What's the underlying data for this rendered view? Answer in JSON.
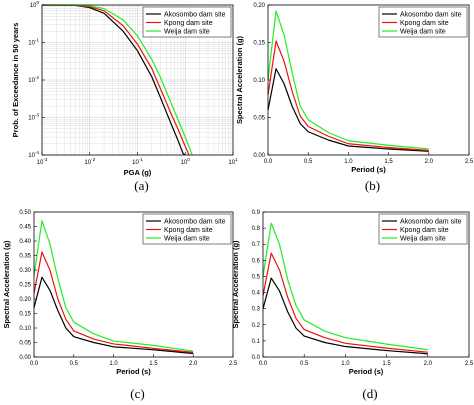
{
  "colors": {
    "akosombo": "#000000",
    "kpong": "#ee1111",
    "weija": "#22ee22",
    "grid": "#d0d0d0"
  },
  "chart_data": [
    {
      "type": "line",
      "caption": "(a)",
      "xlabel": "PGA (g)",
      "ylabel": "Prob. of Exceedance in 50 years",
      "xscale": "log",
      "yscale": "log",
      "xlim": [
        0.001,
        10
      ],
      "ylim": [
        0.0001,
        1
      ],
      "grid": true,
      "legend": "top-right",
      "xticks": [
        {
          "v": 0.001,
          "b": "10",
          "e": "-3"
        },
        {
          "v": 0.01,
          "b": "10",
          "e": "-2"
        },
        {
          "v": 0.1,
          "b": "10",
          "e": "-1"
        },
        {
          "v": 1,
          "b": "10",
          "e": "0"
        },
        {
          "v": 10,
          "b": "10",
          "e": "1"
        }
      ],
      "yticks": [
        {
          "v": 0.0001,
          "b": "10",
          "e": "-4"
        },
        {
          "v": 0.001,
          "b": "10",
          "e": "-3"
        },
        {
          "v": 0.01,
          "b": "10",
          "e": "-2"
        },
        {
          "v": 0.1,
          "b": "10",
          "e": "-1"
        },
        {
          "v": 1,
          "b": "10",
          "e": "0"
        }
      ],
      "series": [
        {
          "name": "Akosombo dam site",
          "color_key": "akosombo",
          "x": [
            0.001,
            0.005,
            0.01,
            0.02,
            0.05,
            0.1,
            0.2,
            0.3,
            0.5,
            0.7,
            0.9,
            1.0
          ],
          "y": [
            1.0,
            0.98,
            0.85,
            0.6,
            0.2,
            0.06,
            0.012,
            0.0035,
            0.0007,
            0.00025,
            0.00011,
            0.0001
          ]
        },
        {
          "name": "Kpong dam site",
          "color_key": "kpong",
          "x": [
            0.001,
            0.005,
            0.01,
            0.02,
            0.05,
            0.1,
            0.2,
            0.3,
            0.5,
            0.7,
            1.0,
            1.2
          ],
          "y": [
            1.0,
            0.99,
            0.9,
            0.7,
            0.28,
            0.09,
            0.02,
            0.006,
            0.0013,
            0.0005,
            0.00017,
            0.0001
          ]
        },
        {
          "name": "Weija dam site",
          "color_key": "weija",
          "x": [
            0.001,
            0.005,
            0.01,
            0.02,
            0.05,
            0.1,
            0.2,
            0.3,
            0.5,
            0.7,
            1.0,
            1.4
          ],
          "y": [
            1.0,
            0.99,
            0.95,
            0.8,
            0.4,
            0.15,
            0.035,
            0.012,
            0.0025,
            0.0009,
            0.0003,
            0.0001
          ]
        }
      ]
    },
    {
      "type": "line",
      "caption": "(b)",
      "xlabel": "Period (s)",
      "ylabel": "Spectral Acceleration (g)",
      "xlim": [
        0,
        2.5
      ],
      "ylim": [
        0,
        0.2
      ],
      "legend": "top-right",
      "xticks": [
        0,
        0.5,
        1.0,
        1.5,
        2.0,
        2.5
      ],
      "yticks": [
        0,
        0.05,
        0.1,
        0.15,
        0.2
      ],
      "xtick_labels": [
        "0.0",
        "0.5",
        "1.0",
        "1.5",
        "2.0",
        "2.5"
      ],
      "ytick_labels": [
        "0.00",
        "0.05",
        "0.10",
        "0.15",
        "0.20"
      ],
      "series": [
        {
          "name": "Akosombo dam site",
          "color_key": "akosombo",
          "x": [
            0,
            0.1,
            0.2,
            0.3,
            0.4,
            0.5,
            0.75,
            1.0,
            1.5,
            2.0
          ],
          "y": [
            0.06,
            0.115,
            0.095,
            0.065,
            0.042,
            0.031,
            0.02,
            0.012,
            0.008,
            0.005
          ]
        },
        {
          "name": "Kpong dam site",
          "color_key": "kpong",
          "x": [
            0,
            0.1,
            0.2,
            0.3,
            0.4,
            0.5,
            0.75,
            1.0,
            1.5,
            2.0
          ],
          "y": [
            0.08,
            0.152,
            0.125,
            0.085,
            0.052,
            0.038,
            0.025,
            0.015,
            0.01,
            0.006
          ]
        },
        {
          "name": "Weija dam site",
          "color_key": "weija",
          "x": [
            0,
            0.1,
            0.2,
            0.3,
            0.4,
            0.5,
            0.75,
            1.0,
            1.5,
            2.0
          ],
          "y": [
            0.1,
            0.192,
            0.16,
            0.11,
            0.065,
            0.047,
            0.03,
            0.019,
            0.013,
            0.008
          ]
        }
      ]
    },
    {
      "type": "line",
      "caption": "(c)",
      "xlabel": "Period (s)",
      "ylabel": "Spectral Acceleration (g)",
      "xlim": [
        0,
        2.5
      ],
      "ylim": [
        0,
        0.5
      ],
      "legend": "top-right",
      "xticks": [
        0,
        0.5,
        1.0,
        1.5,
        2.0,
        2.5
      ],
      "yticks": [
        0,
        0.05,
        0.1,
        0.15,
        0.2,
        0.25,
        0.3,
        0.35,
        0.4,
        0.45,
        0.5
      ],
      "xtick_labels": [
        "0.0",
        "0.5",
        "1.0",
        "1.5",
        "2.0",
        "2.5"
      ],
      "ytick_labels": [
        "0.00",
        "0.05",
        "0.10",
        "0.15",
        "0.20",
        "0.25",
        "0.30",
        "0.35",
        "0.40",
        "0.45",
        "0.50"
      ],
      "series": [
        {
          "name": "Akosombo dam site",
          "color_key": "akosombo",
          "x": [
            0,
            0.1,
            0.2,
            0.3,
            0.4,
            0.5,
            0.75,
            1.0,
            1.5,
            2.0
          ],
          "y": [
            0.17,
            0.275,
            0.23,
            0.16,
            0.1,
            0.07,
            0.05,
            0.035,
            0.025,
            0.012
          ]
        },
        {
          "name": "Kpong dam site",
          "color_key": "kpong",
          "x": [
            0,
            0.1,
            0.2,
            0.3,
            0.4,
            0.5,
            0.75,
            1.0,
            1.5,
            2.0
          ],
          "y": [
            0.22,
            0.362,
            0.3,
            0.2,
            0.13,
            0.09,
            0.062,
            0.045,
            0.03,
            0.016
          ]
        },
        {
          "name": "Weija dam site",
          "color_key": "weija",
          "x": [
            0,
            0.1,
            0.2,
            0.3,
            0.4,
            0.5,
            0.75,
            1.0,
            1.5,
            2.0
          ],
          "y": [
            0.28,
            0.47,
            0.39,
            0.27,
            0.17,
            0.12,
            0.08,
            0.055,
            0.04,
            0.02
          ]
        }
      ]
    },
    {
      "type": "line",
      "caption": "(d)",
      "xlabel": "Period (s)",
      "ylabel": "Spectral Acceleration (g)",
      "xlim": [
        0,
        2.5
      ],
      "ylim": [
        0,
        0.9
      ],
      "legend": "top-right",
      "xticks": [
        0,
        0.5,
        1.0,
        1.5,
        2.0,
        2.5
      ],
      "yticks": [
        0,
        0.1,
        0.2,
        0.3,
        0.4,
        0.5,
        0.6,
        0.7,
        0.8,
        0.9
      ],
      "xtick_labels": [
        "0.0",
        "0.5",
        "1.0",
        "1.5",
        "2.0",
        "2.5"
      ],
      "ytick_labels": [
        "0.0",
        "0.1",
        "0.2",
        "0.3",
        "0.4",
        "0.5",
        "0.6",
        "0.7",
        "0.8",
        "0.9"
      ],
      "series": [
        {
          "name": "Akosombo dam site",
          "color_key": "akosombo",
          "x": [
            0,
            0.1,
            0.2,
            0.3,
            0.4,
            0.5,
            0.75,
            1.0,
            1.5,
            2.0
          ],
          "y": [
            0.3,
            0.49,
            0.41,
            0.28,
            0.18,
            0.13,
            0.09,
            0.065,
            0.04,
            0.02
          ]
        },
        {
          "name": "Kpong dam site",
          "color_key": "kpong",
          "x": [
            0,
            0.1,
            0.2,
            0.3,
            0.4,
            0.5,
            0.75,
            1.0,
            1.5,
            2.0
          ],
          "y": [
            0.38,
            0.645,
            0.54,
            0.37,
            0.24,
            0.17,
            0.12,
            0.085,
            0.055,
            0.03
          ]
        },
        {
          "name": "Weija dam site",
          "color_key": "weija",
          "x": [
            0,
            0.1,
            0.2,
            0.3,
            0.4,
            0.5,
            0.75,
            1.0,
            1.5,
            2.0
          ],
          "y": [
            0.5,
            0.83,
            0.7,
            0.48,
            0.32,
            0.23,
            0.16,
            0.12,
            0.08,
            0.045
          ]
        }
      ]
    }
  ]
}
